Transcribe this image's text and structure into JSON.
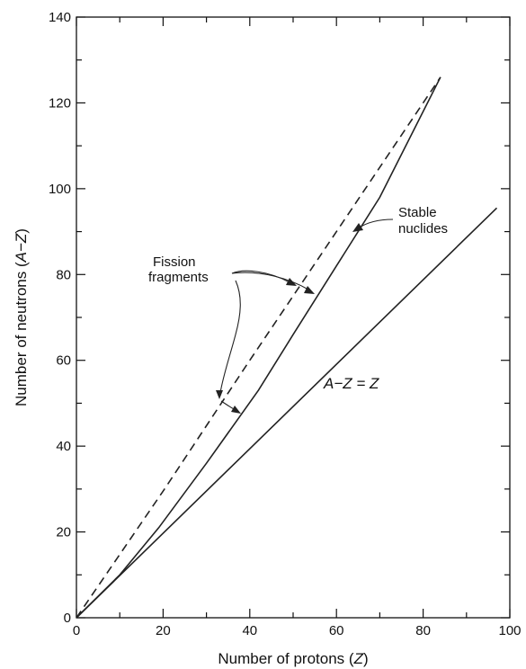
{
  "chart_data": {
    "type": "line",
    "title": "",
    "xlabel": "Number of protons",
    "xlabel_var": "Z",
    "ylabel": "Number of neutrons",
    "ylabel_var": "A−Z",
    "xlim": [
      0,
      100
    ],
    "ylim": [
      0,
      140
    ],
    "xticks": [
      0,
      20,
      40,
      60,
      80,
      100
    ],
    "yticks": [
      0,
      20,
      40,
      60,
      80,
      100,
      120,
      140
    ],
    "x_minor_step": 10,
    "y_minor_step": 10,
    "grid": false,
    "series": [
      {
        "id": "stable",
        "style": "solid",
        "x": [
          0,
          10,
          19,
          30,
          42,
          50,
          60,
          70,
          84
        ],
        "y": [
          0,
          10,
          21,
          36,
          53,
          66,
          82,
          98,
          126
        ]
      },
      {
        "id": "fission",
        "style": "dashed",
        "x": [
          0,
          20,
          40,
          60,
          84
        ],
        "y": [
          0,
          29.5,
          60,
          90,
          126
        ]
      },
      {
        "id": "equal",
        "style": "solid",
        "x": [
          0,
          97
        ],
        "y": [
          0,
          95.5
        ]
      }
    ],
    "annotations": {
      "fission_line1": "Fission",
      "fission_line2": "fragments",
      "stable_line1": "Stable",
      "stable_line2": "nuclides",
      "equal_label": "A−Z = Z"
    }
  }
}
